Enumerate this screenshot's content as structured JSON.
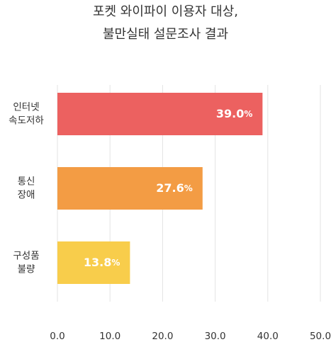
{
  "chart_data": {
    "type": "bar",
    "orientation": "horizontal",
    "title_lines": [
      "포켓 와이파이 이용자 대상,",
      "불만실태 설문조사 결과"
    ],
    "categories": [
      {
        "lines": [
          "인터넷",
          "속도저하"
        ]
      },
      {
        "lines": [
          "통신",
          "장애"
        ]
      },
      {
        "lines": [
          "구성품",
          "불량"
        ]
      }
    ],
    "values": [
      39.0,
      27.6,
      13.8
    ],
    "value_labels": [
      {
        "number": "39.0",
        "unit": "%"
      },
      {
        "number": "27.6",
        "unit": "%"
      },
      {
        "number": "13.8",
        "unit": "%"
      }
    ],
    "bar_colors": [
      "#ec6160",
      "#f39c44",
      "#f8cd4b"
    ],
    "xlim": [
      0,
      50
    ],
    "x_ticks": [
      "0.0",
      "10.0",
      "20.0",
      "30.0",
      "40.0",
      "50.0"
    ],
    "x_tick_values": [
      0,
      10,
      20,
      30,
      40,
      50
    ],
    "grid": "vertical",
    "grid_color": "#e3e3e3"
  }
}
